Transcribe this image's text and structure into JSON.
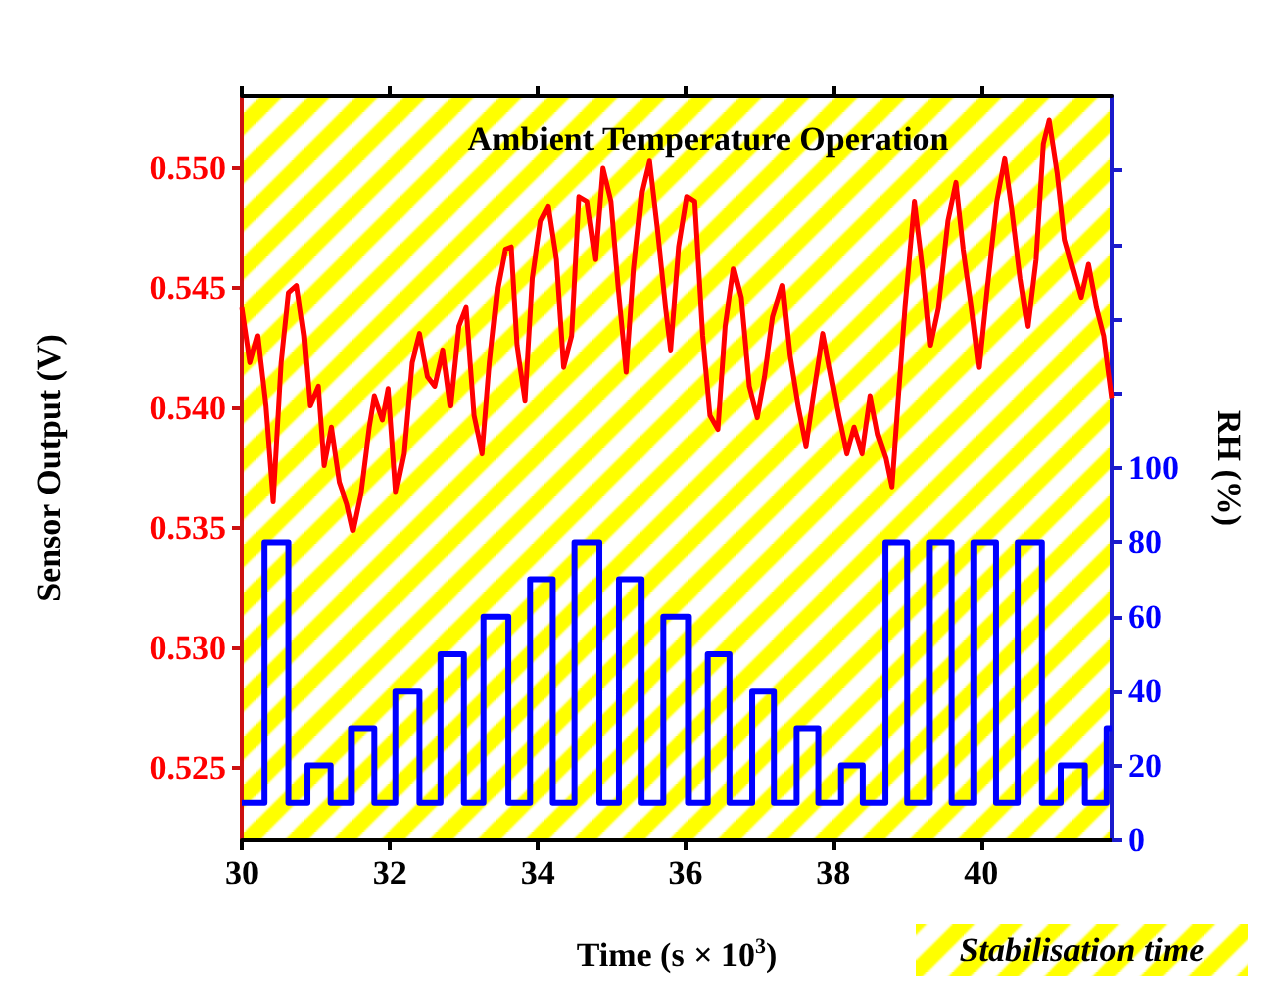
{
  "chart_data": {
    "type": "line",
    "title": "Ambient Temperature Operation",
    "xlabel": "Time (s × 10$^{3}$)",
    "ylabel": "Sensor Output (V)",
    "y2label": "RH (%)",
    "xlim": [
      30,
      41.77
    ],
    "xticks": [
      30,
      32,
      34,
      36,
      38,
      40
    ],
    "ylim": [
      0.522,
      0.553
    ],
    "yticks": [
      0.525,
      {
        "value": 0.53,
        "label": "0.530"
      },
      0.535,
      {
        "value": 0.54,
        "label": "0.540"
      },
      0.545,
      {
        "value": 0.55,
        "label": "0.550"
      }
    ],
    "y2lim": [
      0,
      200
    ],
    "y2ticks": [
      0,
      20,
      40,
      60,
      80,
      100,
      {
        "value": 120,
        "label": null
      },
      {
        "value": 140,
        "label": null
      },
      {
        "value": 160,
        "label": null
      },
      {
        "value": 180,
        "label": null
      }
    ],
    "marker": "none",
    "line_style": "solid",
    "bands": [
      {
        "axis": "x",
        "from": 30,
        "to": 41.77,
        "label": "Stabilisation time",
        "color": "#ffff00"
      }
    ],
    "series": [
      {
        "color": "#ff0000",
        "x": [
          30.0,
          30.11,
          30.21,
          30.32,
          30.42,
          30.53,
          30.63,
          30.74,
          30.84,
          30.92,
          31.03,
          31.11,
          31.21,
          31.32,
          31.42,
          31.5,
          31.61,
          31.72,
          31.79,
          31.9,
          31.98,
          32.08,
          32.19,
          32.3,
          32.4,
          32.51,
          32.61,
          32.72,
          32.82,
          32.93,
          33.03,
          33.14,
          33.25,
          33.35,
          33.46,
          33.56,
          33.64,
          33.72,
          33.83,
          33.93,
          34.04,
          34.14,
          34.25,
          34.35,
          34.46,
          34.56,
          34.67,
          34.78,
          34.88,
          34.99,
          35.09,
          35.2,
          35.3,
          35.41,
          35.51,
          35.62,
          35.73,
          35.8,
          35.91,
          36.02,
          36.12,
          36.23,
          36.33,
          36.44,
          36.54,
          36.65,
          36.75,
          36.86,
          36.97,
          37.07,
          37.18,
          37.31,
          37.41,
          37.52,
          37.63,
          37.73,
          37.86,
          37.97,
          38.07,
          38.18,
          38.28,
          38.39,
          38.5,
          38.6,
          38.71,
          38.79,
          38.87,
          38.97,
          39.1,
          39.21,
          39.31,
          39.42,
          39.55,
          39.66,
          39.76,
          39.87,
          39.97,
          40.08,
          40.21,
          40.32,
          40.42,
          40.53,
          40.63,
          40.74,
          40.84,
          40.92,
          41.03,
          41.13,
          41.24,
          41.35,
          41.45,
          41.56,
          41.66,
          41.77
        ],
        "values": [
          0.5442,
          0.5419,
          0.543,
          0.5401,
          0.5361,
          0.5419,
          0.5448,
          0.5451,
          0.543,
          0.5401,
          0.5409,
          0.5376,
          0.5392,
          0.5369,
          0.536,
          0.5349,
          0.5365,
          0.5392,
          0.5405,
          0.5395,
          0.5408,
          0.5365,
          0.5381,
          0.5419,
          0.5431,
          0.5413,
          0.5409,
          0.5424,
          0.5401,
          0.5434,
          0.5442,
          0.5397,
          0.5381,
          0.5419,
          0.545,
          0.5466,
          0.5467,
          0.5426,
          0.5403,
          0.5454,
          0.5478,
          0.5484,
          0.5462,
          0.5417,
          0.543,
          0.5488,
          0.5486,
          0.5462,
          0.55,
          0.5486,
          0.545,
          0.5415,
          0.5458,
          0.549,
          0.5503,
          0.5474,
          0.5442,
          0.5424,
          0.5467,
          0.5488,
          0.5486,
          0.543,
          0.5397,
          0.5391,
          0.5434,
          0.5458,
          0.5446,
          0.5409,
          0.5396,
          0.5413,
          0.5438,
          0.5451,
          0.5422,
          0.5401,
          0.5384,
          0.5405,
          0.5431,
          0.5413,
          0.5397,
          0.5381,
          0.5392,
          0.5381,
          0.5405,
          0.5389,
          0.5379,
          0.5367,
          0.5401,
          0.5442,
          0.5486,
          0.5458,
          0.5426,
          0.5442,
          0.5478,
          0.5494,
          0.5466,
          0.5442,
          0.5417,
          0.545,
          0.5486,
          0.5504,
          0.5482,
          0.5454,
          0.5434,
          0.5462,
          0.551,
          0.552,
          0.5498,
          0.547,
          0.5458,
          0.5446,
          0.546,
          0.5442,
          0.543,
          0.5404
        ]
      },
      {
        "type": "step",
        "axis": "y2",
        "color": "#0000ff",
        "x": [
          30,
          30.3,
          30.63,
          30.88,
          31.2,
          31.48,
          31.79,
          32.08,
          32.4,
          32.69,
          33.0,
          33.27,
          33.6,
          33.9,
          34.2,
          34.5,
          34.83,
          35.1,
          35.4,
          35.7,
          36.04,
          36.3,
          36.6,
          36.9,
          37.2,
          37.5,
          37.8,
          38.1,
          38.4,
          38.7,
          39.0,
          39.3,
          39.6,
          39.9,
          40.2,
          40.5,
          40.82,
          41.08,
          41.4,
          41.7,
          41.77
        ],
        "values": [
          10,
          80,
          10,
          20,
          10,
          30,
          10,
          40,
          10,
          50,
          10,
          60,
          10,
          70,
          10,
          80,
          10,
          70,
          10,
          60,
          10,
          50,
          10,
          40,
          10,
          30,
          10,
          20,
          10,
          80,
          10,
          80,
          10,
          80,
          10,
          80,
          10,
          20,
          10,
          30,
          30
        ]
      }
    ]
  }
}
